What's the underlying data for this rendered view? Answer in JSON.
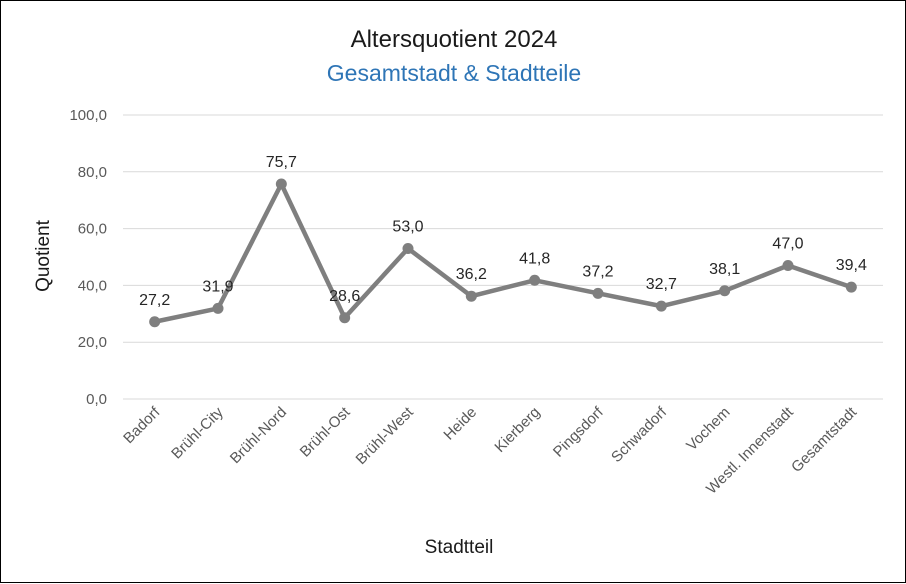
{
  "chart_data": {
    "type": "line",
    "title": "Altersquotient 2024",
    "subtitle": "Gesamtstadt & Stadtteile",
    "xlabel": "Stadtteil",
    "ylabel": "Quotient",
    "ylim": [
      0,
      100
    ],
    "yticks": [
      "0,0",
      "20,0",
      "40,0",
      "60,0",
      "80,0",
      "100,0"
    ],
    "grid": true,
    "categories": [
      "Badorf",
      "Brühl-City",
      "Brühl-Nord",
      "Brühl-Ost",
      "Brühl-West",
      "Heide",
      "Kierberg",
      "Pingsdorf",
      "Schwadorf",
      "Vochem",
      "Westl. Innenstadt",
      "Gesamtstadt"
    ],
    "values": [
      27.2,
      31.9,
      75.7,
      28.6,
      53.0,
      36.2,
      41.8,
      37.2,
      32.7,
      38.1,
      47.0,
      39.4
    ],
    "value_labels": [
      "27,2",
      "31,9",
      "75,7",
      "28,6",
      "53,0",
      "36,2",
      "41,8",
      "37,2",
      "32,7",
      "38,1",
      "47,0",
      "39,4"
    ],
    "highlight_index": 11,
    "colors": {
      "line": "#7f7f7f",
      "grid": "#d9d9d9",
      "subtitle": "#2e75b6",
      "highlight_label": "#2e75b6"
    }
  }
}
